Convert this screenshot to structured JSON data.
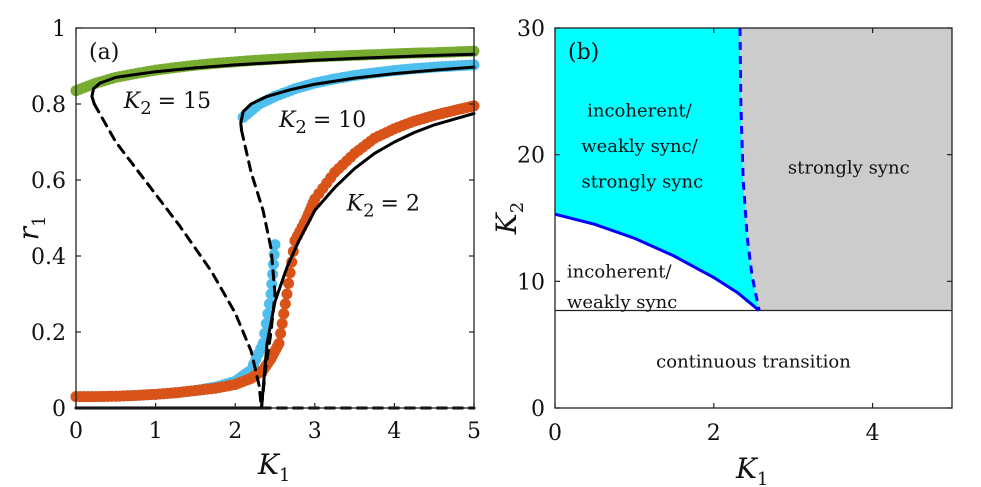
{
  "chart_data": [
    {
      "panel": "(a)",
      "type": "line",
      "xlabel": "K",
      "xlabel_sub": "1",
      "ylabel": "r",
      "ylabel_sub": "1",
      "xlim": [
        0,
        5
      ],
      "ylim": [
        0,
        1
      ],
      "xticks": [
        "0",
        "1",
        "2",
        "3",
        "4",
        "5"
      ],
      "yticks": [
        "0",
        "0.2",
        "0.4",
        "0.6",
        "0.8",
        "1"
      ],
      "annotations": [
        {
          "text": "K",
          "sub": "2",
          "value": "= 15",
          "x": 0.6,
          "y": 0.79
        },
        {
          "text": "K",
          "sub": "2",
          "value": "= 10",
          "x": 2.55,
          "y": 0.74
        },
        {
          "text": "K",
          "sub": "2",
          "value": "= 2",
          "x": 3.4,
          "y": 0.52
        }
      ],
      "series": [
        {
          "name": "K2 = 15 simulation",
          "color": "#77ac30",
          "style": "markers",
          "x": [
            0,
            0.25,
            0.5,
            0.75,
            1.0,
            1.25,
            1.5,
            1.75,
            2.0,
            2.25,
            2.5,
            2.75,
            3.0,
            3.25,
            3.5,
            3.75,
            4.0,
            4.25,
            4.5,
            4.75,
            5.0
          ],
          "y": [
            0.835,
            0.855,
            0.87,
            0.88,
            0.889,
            0.896,
            0.902,
            0.907,
            0.911,
            0.915,
            0.918,
            0.921,
            0.924,
            0.926,
            0.928,
            0.93,
            0.932,
            0.934,
            0.935,
            0.937,
            0.939
          ]
        },
        {
          "name": "K2 = 10 simulation",
          "color": "#4dbeee",
          "style": "markers",
          "x": [
            0,
            0.25,
            0.5,
            0.75,
            1.0,
            1.25,
            1.5,
            1.75,
            2.0,
            2.2,
            2.35,
            2.45,
            2.5,
            2.1,
            2.3,
            2.5,
            2.75,
            3.0,
            3.25,
            3.5,
            3.75,
            4.0,
            4.25,
            4.5,
            4.75,
            5.0
          ],
          "y": [
            0.03,
            0.03,
            0.031,
            0.033,
            0.036,
            0.04,
            0.046,
            0.055,
            0.07,
            0.1,
            0.17,
            0.3,
            0.43,
            0.765,
            0.8,
            0.82,
            0.84,
            0.855,
            0.866,
            0.875,
            0.882,
            0.888,
            0.893,
            0.897,
            0.9,
            0.903
          ]
        },
        {
          "name": "K2 = 2 simulation",
          "color": "#d95319",
          "style": "markers",
          "x": [
            0,
            0.25,
            0.5,
            0.75,
            1.0,
            1.25,
            1.5,
            1.75,
            2.0,
            2.2,
            2.35,
            2.45,
            2.55,
            2.65,
            2.75,
            2.9,
            3.0,
            3.25,
            3.5,
            3.75,
            4.0,
            4.25,
            4.5,
            4.75,
            5.0
          ],
          "y": [
            0.03,
            0.03,
            0.031,
            0.033,
            0.036,
            0.04,
            0.046,
            0.052,
            0.062,
            0.078,
            0.1,
            0.13,
            0.17,
            0.3,
            0.44,
            0.5,
            0.55,
            0.62,
            0.67,
            0.71,
            0.735,
            0.755,
            0.77,
            0.783,
            0.795
          ]
        },
        {
          "name": "K2 = 15 stable",
          "color": "#000000",
          "style": "solid",
          "x": [
            0.23,
            0.2,
            0.22,
            0.3,
            0.5,
            1.0,
            1.5,
            2.0,
            2.5,
            3.0,
            3.5,
            4.0,
            4.5,
            5.0
          ],
          "y": [
            0.8,
            0.82,
            0.84,
            0.855,
            0.87,
            0.885,
            0.895,
            0.903,
            0.909,
            0.915,
            0.92,
            0.924,
            0.928,
            0.931
          ]
        },
        {
          "name": "K2 = 15 unstable",
          "color": "#000000",
          "style": "dashed",
          "x": [
            0.23,
            0.5,
            0.9,
            1.3,
            1.7,
            2.0,
            2.2,
            2.3,
            2.33
          ],
          "y": [
            0.8,
            0.7,
            0.59,
            0.48,
            0.36,
            0.25,
            0.15,
            0.06,
            0.0
          ]
        },
        {
          "name": "K2 = 10 stable",
          "color": "#000000",
          "style": "solid",
          "x": [
            2.08,
            2.07,
            2.1,
            2.2,
            2.4,
            2.7,
            3.0,
            3.5,
            4.0,
            4.5,
            5.0
          ],
          "y": [
            0.73,
            0.75,
            0.78,
            0.8,
            0.82,
            0.838,
            0.852,
            0.868,
            0.88,
            0.889,
            0.897
          ]
        },
        {
          "name": "K2 = 10 unstable",
          "color": "#000000",
          "style": "dashed",
          "x": [
            2.08,
            2.2,
            2.35,
            2.45,
            2.5,
            2.45,
            2.38,
            2.33
          ],
          "y": [
            0.73,
            0.62,
            0.52,
            0.42,
            0.3,
            0.2,
            0.1,
            0.0
          ]
        },
        {
          "name": "K2 = 2 stable",
          "color": "#000000",
          "style": "solid",
          "x": [
            2.33,
            2.4,
            2.5,
            2.65,
            2.8,
            3.0,
            3.25,
            3.5,
            3.75,
            4.0,
            4.25,
            4.5,
            4.75,
            5.0
          ],
          "y": [
            0.0,
            0.17,
            0.28,
            0.37,
            0.44,
            0.52,
            0.58,
            0.63,
            0.67,
            0.7,
            0.725,
            0.745,
            0.76,
            0.775
          ]
        },
        {
          "name": "incoherent stable",
          "color": "#000000",
          "style": "solid",
          "x": [
            0,
            2.33
          ],
          "y": [
            0.0,
            0.0
          ]
        },
        {
          "name": "incoherent unstable",
          "color": "#000000",
          "style": "dashed",
          "x": [
            2.33,
            5.0
          ],
          "y": [
            0.0,
            0.0
          ]
        }
      ]
    },
    {
      "panel": "(b)",
      "type": "area",
      "xlabel": "K",
      "xlabel_sub": "1",
      "ylabel": "K",
      "ylabel_sub": "2",
      "xlim": [
        0,
        5
      ],
      "ylim": [
        0,
        30
      ],
      "xticks": [
        "0",
        "2",
        "4"
      ],
      "yticks": [
        "0",
        "10",
        "20",
        "30"
      ],
      "threshold_k2": 7.7,
      "lower_boundary": {
        "x": [
          0,
          0.5,
          1.0,
          1.5,
          2.0,
          2.3,
          2.57
        ],
        "y": [
          15.3,
          14.5,
          13.4,
          12.0,
          10.3,
          9.1,
          7.7
        ]
      },
      "upper_boundary": {
        "x": [
          2.33,
          2.34,
          2.37,
          2.42,
          2.48,
          2.57
        ],
        "y": [
          30,
          24,
          18,
          13.5,
          10.5,
          7.7
        ]
      },
      "colors": {
        "bistable": "#00ffff",
        "strong": "#cccccc",
        "line": "#0000ff"
      },
      "regions": {
        "bistable": [
          "incoherent/",
          "weakly sync/",
          "strongly sync"
        ],
        "strong": [
          "strongly sync"
        ],
        "weak": [
          "incoherent/",
          "weakly sync"
        ],
        "continuous": [
          "continuous transition"
        ]
      }
    }
  ]
}
